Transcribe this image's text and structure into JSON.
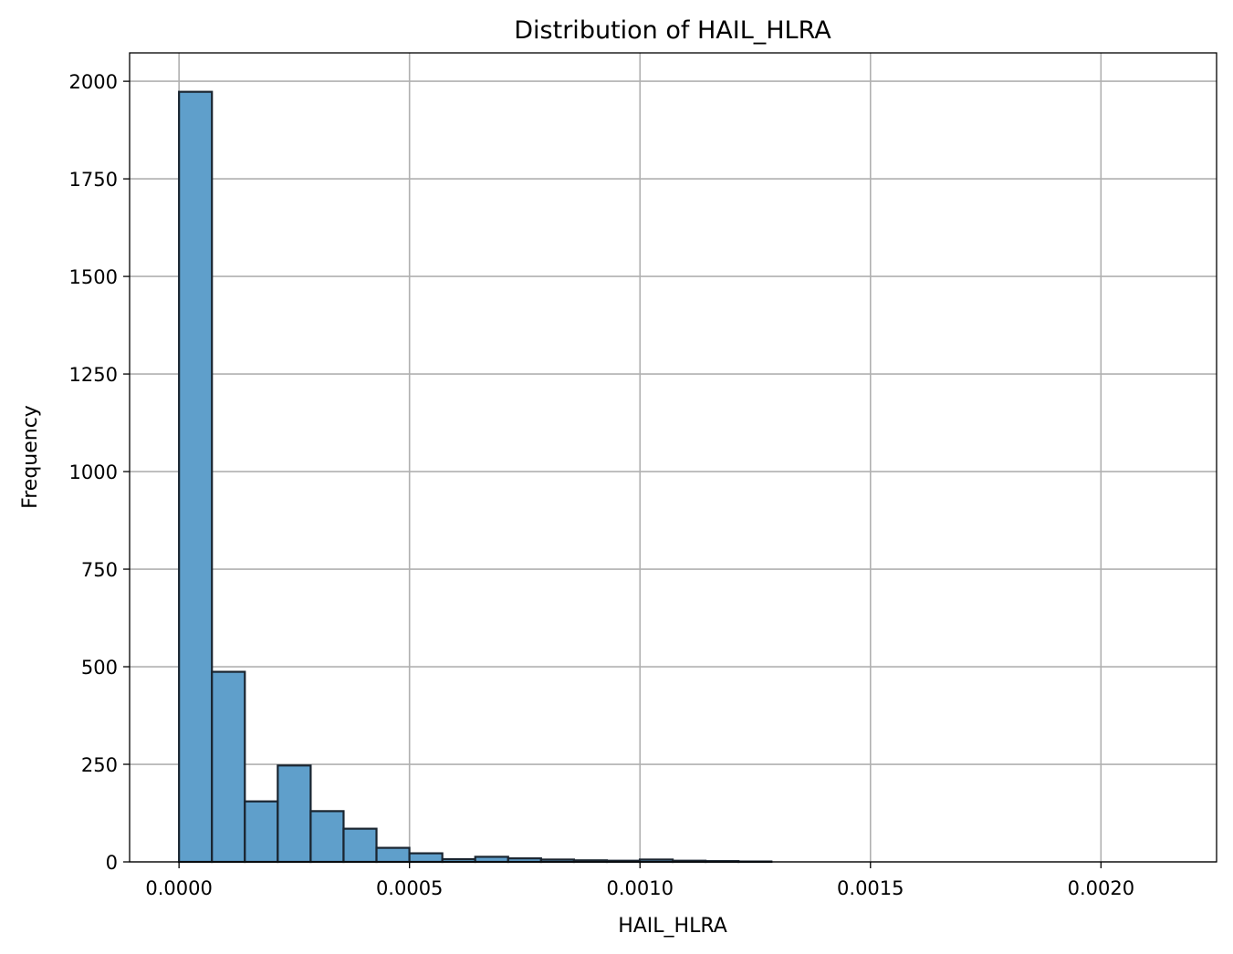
{
  "chart_data": {
    "type": "bar",
    "title": "Distribution of HAIL_HLRA",
    "xlabel": "HAIL_HLRA",
    "ylabel": "Frequency",
    "xlim": [
      -0.0001072,
      0.0022508
    ],
    "ylim": [
      0,
      2072.7
    ],
    "x_ticks": [
      0.0,
      0.0005,
      0.001,
      0.0015,
      0.002
    ],
    "x_tick_labels": [
      "0.0000",
      "0.0005",
      "0.0010",
      "0.0015",
      "0.0020"
    ],
    "y_ticks": [
      0,
      250,
      500,
      750,
      1000,
      1250,
      1500,
      1750,
      2000
    ],
    "y_tick_labels": [
      "0",
      "250",
      "500",
      "750",
      "1000",
      "1250",
      "1500",
      "1750",
      "2000"
    ],
    "grid": true,
    "bar_color": "#5f9fcb",
    "edge_color": "#1a2530",
    "bin_edges": [
      0.0,
      7.14e-05,
      0.0001428,
      0.0002142,
      0.0002856,
      0.000357,
      0.0004284,
      0.0004998,
      0.0005712,
      0.0006426,
      0.000714,
      0.0007854,
      0.0008568,
      0.0009282,
      0.0009996,
      0.001071,
      0.0011424,
      0.0012138,
      0.0012852,
      0.0013566,
      0.001428,
      0.0014994,
      0.0015708,
      0.0016422,
      0.0017136,
      0.001785,
      0.0018564,
      0.0019278,
      0.0019992,
      0.0020706,
      0.002142
    ],
    "values": [
      1973,
      487,
      155,
      247,
      130,
      85,
      36,
      22,
      7,
      13,
      9,
      6,
      4,
      3,
      6,
      3,
      2,
      1,
      0,
      0,
      0,
      0,
      0,
      0,
      0,
      0,
      0,
      0,
      0,
      0
    ]
  }
}
